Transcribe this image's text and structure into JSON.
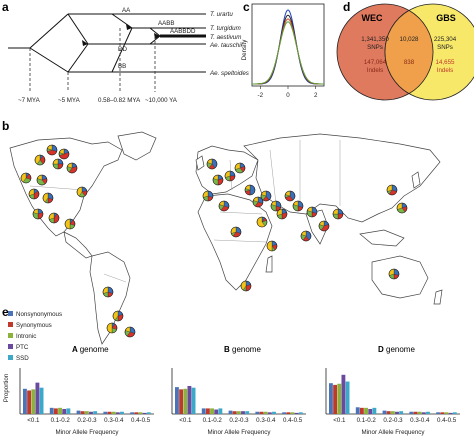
{
  "panels": {
    "a": "a",
    "b": "b",
    "c": "c",
    "d": "d",
    "e": "e"
  },
  "phylogeny": {
    "species": [
      "T. urartu",
      "T. turgidum",
      "T. aestivum",
      "Ae. tauschii",
      "Ae. speltoides"
    ],
    "genome_labels": [
      "AA",
      "AABB",
      "AABBDD",
      "DD",
      "BB"
    ],
    "time_labels": [
      "~7 MYA",
      "~5 MYA",
      "0.58–0.82 MYA",
      "~10,000 YA"
    ]
  },
  "chart_data": [
    {
      "type": "line",
      "panel": "c",
      "title": "",
      "xlabel": "",
      "ylabel": "Density",
      "xlim": [
        -2.6,
        2.6
      ],
      "x_ticks": [
        "-2",
        "0",
        "2"
      ],
      "series": [
        {
          "color": "#1f3fbf",
          "peak": 1.0,
          "sd": 0.55
        },
        {
          "color": "#222222",
          "peak": 0.93,
          "sd": 0.58
        },
        {
          "color": "#d9481f",
          "peak": 0.88,
          "sd": 0.6
        },
        {
          "color": "#5a9e3a",
          "peak": 0.84,
          "sd": 0.62
        }
      ]
    },
    {
      "type": "venn",
      "panel": "d",
      "sets": [
        {
          "name": "WEC",
          "only_snps": "1,341,350",
          "only_snps_label": "SNPs",
          "only_indels": "147,064",
          "only_indels_label": "Indels",
          "color": "#e07a5f"
        },
        {
          "name": "GBS",
          "only_snps": "225,304",
          "only_snps_label": "SNPs",
          "only_indels": "14,655",
          "only_indels_label": "Indels",
          "color": "#f7e86a"
        }
      ],
      "overlap": {
        "snps": "10,028",
        "indels": "838",
        "color": "#f0a04a"
      }
    },
    {
      "type": "bar",
      "panel": "e",
      "genome": "A",
      "title_suffix": "genome",
      "xlabel": "Minor Allele Frequency",
      "ylabel": "Proportion",
      "categories": [
        "<0.1",
        "0.1-0.2",
        "0.2-0.3",
        "0.3-0.4",
        "0.4-0.5"
      ],
      "ylim": [
        0,
        0.75
      ],
      "series": [
        {
          "name": "Nonsynonymous",
          "values": [
            0.45,
            0.11,
            0.06,
            0.04,
            0.03
          ]
        },
        {
          "name": "Synonymous",
          "values": [
            0.42,
            0.1,
            0.05,
            0.04,
            0.03
          ]
        },
        {
          "name": "Intronic",
          "values": [
            0.44,
            0.11,
            0.05,
            0.04,
            0.03
          ]
        },
        {
          "name": "PTC",
          "values": [
            0.56,
            0.09,
            0.04,
            0.03,
            0.02
          ]
        },
        {
          "name": "SSD",
          "values": [
            0.47,
            0.1,
            0.05,
            0.04,
            0.03
          ]
        }
      ]
    },
    {
      "type": "bar",
      "panel": "e",
      "genome": "B",
      "title_suffix": "genome",
      "xlabel": "Minor Allele Frequency",
      "ylabel": "",
      "categories": [
        "<0.1",
        "0.1-0.2",
        "0.2-0.3",
        "0.3-0.4",
        "0.4-0.5"
      ],
      "ylim": [
        0,
        0.75
      ],
      "series": [
        {
          "name": "Nonsynonymous",
          "values": [
            0.48,
            0.1,
            0.06,
            0.04,
            0.03
          ]
        },
        {
          "name": "Synonymous",
          "values": [
            0.44,
            0.1,
            0.05,
            0.04,
            0.03
          ]
        },
        {
          "name": "Intronic",
          "values": [
            0.45,
            0.1,
            0.05,
            0.04,
            0.03
          ]
        },
        {
          "name": "PTC",
          "values": [
            0.5,
            0.08,
            0.05,
            0.03,
            0.02
          ]
        },
        {
          "name": "SSD",
          "values": [
            0.47,
            0.1,
            0.05,
            0.04,
            0.03
          ]
        }
      ]
    },
    {
      "type": "bar",
      "panel": "e",
      "genome": "D",
      "title_suffix": "genome",
      "xlabel": "Minor Allele Frequency",
      "ylabel": "",
      "categories": [
        "<0.1",
        "0.1-0.2",
        "0.2-0.3",
        "0.3-0.4",
        "0.4-0.5"
      ],
      "ylim": [
        0,
        0.75
      ],
      "series": [
        {
          "name": "Nonsynonymous",
          "values": [
            0.55,
            0.12,
            0.06,
            0.04,
            0.03
          ]
        },
        {
          "name": "Synonymous",
          "values": [
            0.52,
            0.11,
            0.05,
            0.04,
            0.03
          ]
        },
        {
          "name": "Intronic",
          "values": [
            0.54,
            0.11,
            0.05,
            0.04,
            0.03
          ]
        },
        {
          "name": "PTC",
          "values": [
            0.7,
            0.09,
            0.04,
            0.03,
            0.02
          ]
        },
        {
          "name": "SSD",
          "values": [
            0.58,
            0.11,
            0.05,
            0.04,
            0.03
          ]
        }
      ]
    }
  ],
  "legend": [
    {
      "name": "Nonsynonymous",
      "color": "#4a73b8"
    },
    {
      "name": "Synonymous",
      "color": "#c0392b"
    },
    {
      "name": "Intronic",
      "color": "#8bb23c"
    },
    {
      "name": "PTC",
      "color": "#6a4a9e"
    },
    {
      "name": "SSD",
      "color": "#3ca9c9"
    }
  ],
  "map": {
    "land_color": "#ffffff",
    "border_color": "#444444",
    "pie_colors": [
      "#3b6fb6",
      "#d6342b",
      "#7ab648",
      "#f2c418"
    ]
  }
}
